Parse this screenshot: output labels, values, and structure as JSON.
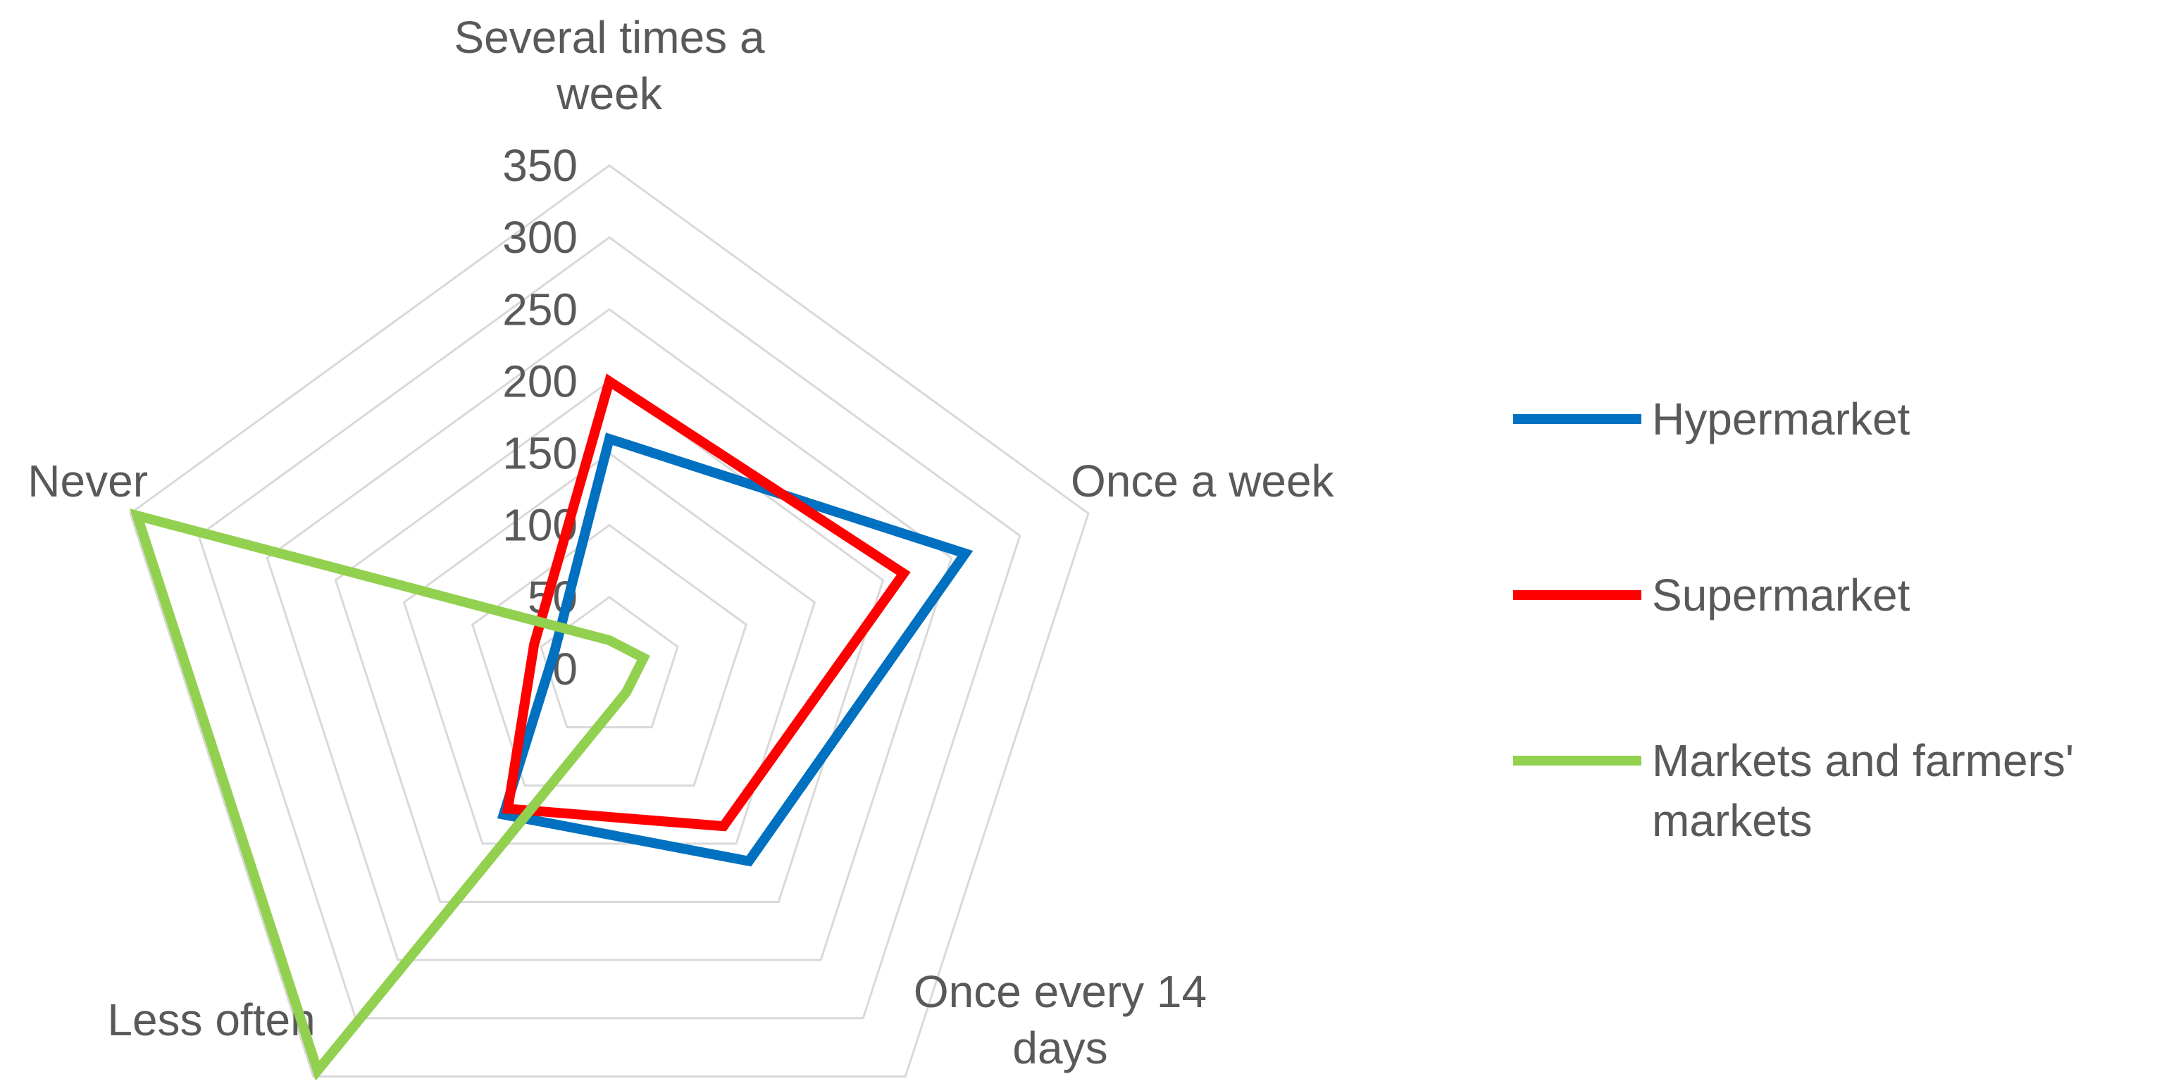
{
  "chart_data": {
    "type": "radar",
    "title": "",
    "categories": [
      "Several times a week",
      "Once a week",
      "Once every 14 days",
      "Less often",
      "Never"
    ],
    "category_label_lines": [
      [
        "Several times a",
        "week"
      ],
      [
        "Once a week"
      ],
      [
        "Once every 14",
        "days"
      ],
      [
        "Less often"
      ],
      [
        "Never"
      ]
    ],
    "rlim": [
      0,
      350
    ],
    "ticks": [
      0,
      50,
      100,
      150,
      200,
      250,
      300,
      350
    ],
    "tick_labels": [
      "0",
      "50",
      "100",
      "150",
      "200",
      "250",
      "300",
      "350"
    ],
    "grid": true,
    "legend_position": "right",
    "series": [
      {
        "name": "Hypermarket",
        "color": "#0070C0",
        "values": [
          160,
          260,
          165,
          125,
          40
        ]
      },
      {
        "name": "Supermarket",
        "color": "#FF0000",
        "values": [
          200,
          215,
          135,
          120,
          55
        ]
      },
      {
        "name": "Markets and farmers' markets",
        "color": "#92D050",
        "values": [
          20,
          25,
          20,
          345,
          345
        ]
      }
    ],
    "legend_label_lines": [
      [
        "Hypermarket"
      ],
      [
        "Supermarket"
      ],
      [
        "Markets and farmers'",
        "markets"
      ]
    ]
  }
}
